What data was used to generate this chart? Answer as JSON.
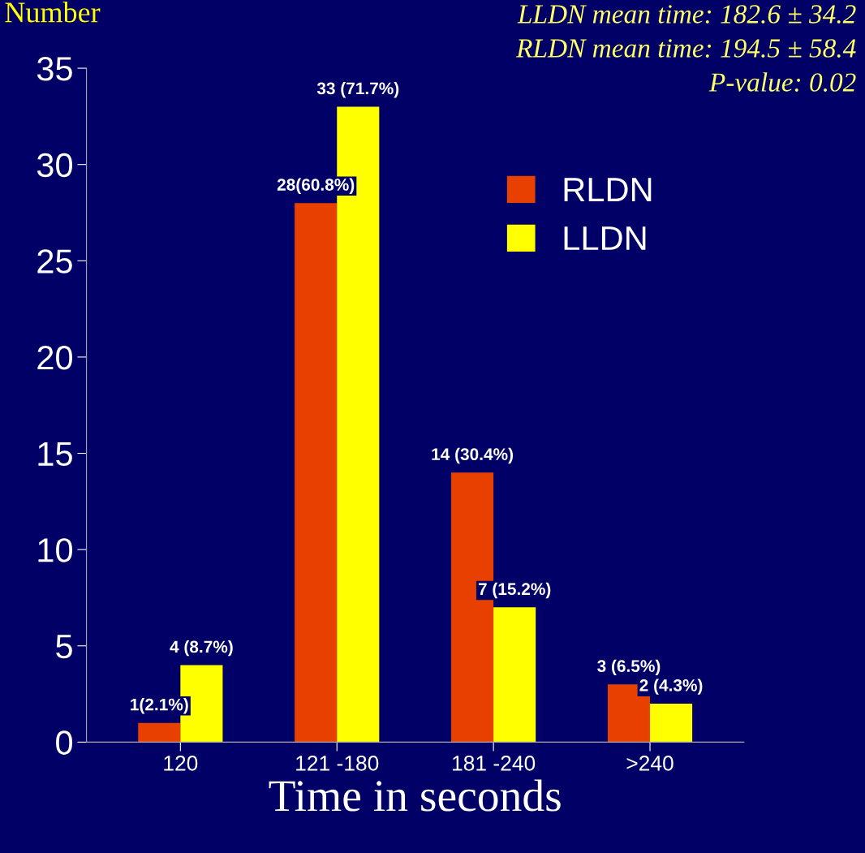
{
  "chart_data": {
    "type": "bar",
    "ylabel": "Number",
    "xlabel": "Time in seconds",
    "categories": [
      "120",
      "121 -180",
      "181 -240",
      ">240"
    ],
    "series": [
      {
        "name": "RLDN",
        "color": "#e84000",
        "values": [
          1,
          28,
          14,
          3
        ],
        "value_labels": [
          "1(2.1%)",
          "28(60.8%)",
          "14 (30.4%)",
          "3 (6.5%)"
        ]
      },
      {
        "name": "LLDN",
        "color": "#ffff00",
        "values": [
          4,
          33,
          7,
          2
        ],
        "value_labels": [
          "4 (8.7%)",
          "33 (71.7%)",
          "7 (15.2%)",
          "2 (4.3%)"
        ]
      }
    ],
    "ylim": [
      0,
      35
    ],
    "yticks": [
      0,
      5,
      10,
      15,
      20,
      25,
      30,
      35
    ],
    "grid": false,
    "legend": "top right",
    "annotations": [
      "LLDN mean time: 182.6 ± 34.2",
      "RLDN mean time: 194.5 ± 58.4",
      "P-value: 0.02"
    ]
  }
}
